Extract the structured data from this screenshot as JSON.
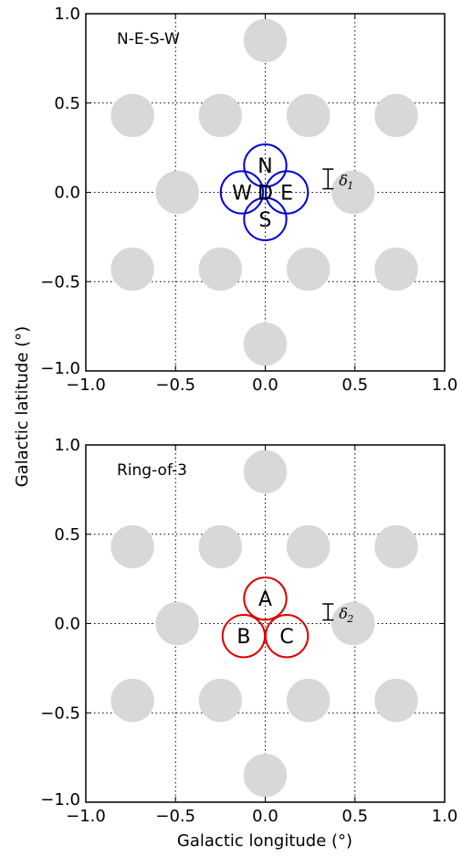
{
  "figure": {
    "ylabel": "Galactic latitude (°)",
    "xlabel": "Galactic longitude (°)"
  },
  "chart_data": [
    {
      "type": "scatter",
      "panel_label": "N-E-S-W",
      "xlim": [
        -1.0,
        1.0
      ],
      "ylim": [
        -1.0,
        1.0
      ],
      "xticks": [
        "−1.0",
        "−0.5",
        "0.0",
        "0.5",
        "1.0"
      ],
      "yticks": [
        "−1.0",
        "−0.5",
        "0.0",
        "0.5",
        "1.0"
      ],
      "grid": "dotted",
      "beam_radius": 0.118,
      "beam_color": "#d8d8d8",
      "background_beams": [
        {
          "x": 0.0,
          "y": 0.85
        },
        {
          "x": -0.74,
          "y": 0.43
        },
        {
          "x": -0.25,
          "y": 0.43
        },
        {
          "x": 0.24,
          "y": 0.43
        },
        {
          "x": 0.73,
          "y": 0.43
        },
        {
          "x": -0.49,
          "y": 0.0
        },
        {
          "x": 0.49,
          "y": 0.0
        },
        {
          "x": -0.74,
          "y": -0.43
        },
        {
          "x": -0.25,
          "y": -0.43
        },
        {
          "x": 0.24,
          "y": -0.43
        },
        {
          "x": 0.73,
          "y": -0.43
        },
        {
          "x": 0.0,
          "y": -0.85
        }
      ],
      "highlight_color": "#0000dd",
      "pointings": [
        {
          "label": "N",
          "x": 0.0,
          "y": 0.15
        },
        {
          "label": "E",
          "x": 0.12,
          "y": 0.0
        },
        {
          "label": "S",
          "x": 0.0,
          "y": -0.15
        },
        {
          "label": "W",
          "x": -0.13,
          "y": 0.0
        },
        {
          "label": "D",
          "x": 0.0,
          "y": 0.0
        }
      ],
      "delta_label": "δ",
      "delta_sub": "1",
      "delta_bar": {
        "x": 0.35,
        "y0": 0.02,
        "y1": 0.13
      }
    },
    {
      "type": "scatter",
      "panel_label": "Ring-of-3",
      "xlim": [
        -1.0,
        1.0
      ],
      "ylim": [
        -1.0,
        1.0
      ],
      "xticks": [
        "−1.0",
        "−0.5",
        "0.0",
        "0.5",
        "1.0"
      ],
      "yticks": [
        "−1.0",
        "−0.5",
        "0.0",
        "0.5",
        "1.0"
      ],
      "grid": "dotted",
      "beam_radius": 0.118,
      "beam_color": "#d8d8d8",
      "background_beams": [
        {
          "x": 0.0,
          "y": 0.85
        },
        {
          "x": -0.74,
          "y": 0.43
        },
        {
          "x": -0.25,
          "y": 0.43
        },
        {
          "x": 0.24,
          "y": 0.43
        },
        {
          "x": 0.73,
          "y": 0.43
        },
        {
          "x": -0.49,
          "y": 0.0
        },
        {
          "x": 0.49,
          "y": 0.0
        },
        {
          "x": -0.74,
          "y": -0.43
        },
        {
          "x": -0.25,
          "y": -0.43
        },
        {
          "x": 0.24,
          "y": -0.43
        },
        {
          "x": 0.73,
          "y": -0.43
        },
        {
          "x": 0.0,
          "y": -0.85
        }
      ],
      "highlight_color": "#dd0000",
      "pointings": [
        {
          "label": "A",
          "x": 0.0,
          "y": 0.14
        },
        {
          "label": "B",
          "x": -0.12,
          "y": -0.07
        },
        {
          "label": "C",
          "x": 0.12,
          "y": -0.07
        }
      ],
      "delta_label": "δ",
      "delta_sub": "2",
      "delta_bar": {
        "x": 0.35,
        "y0": 0.02,
        "y1": 0.11
      }
    }
  ]
}
